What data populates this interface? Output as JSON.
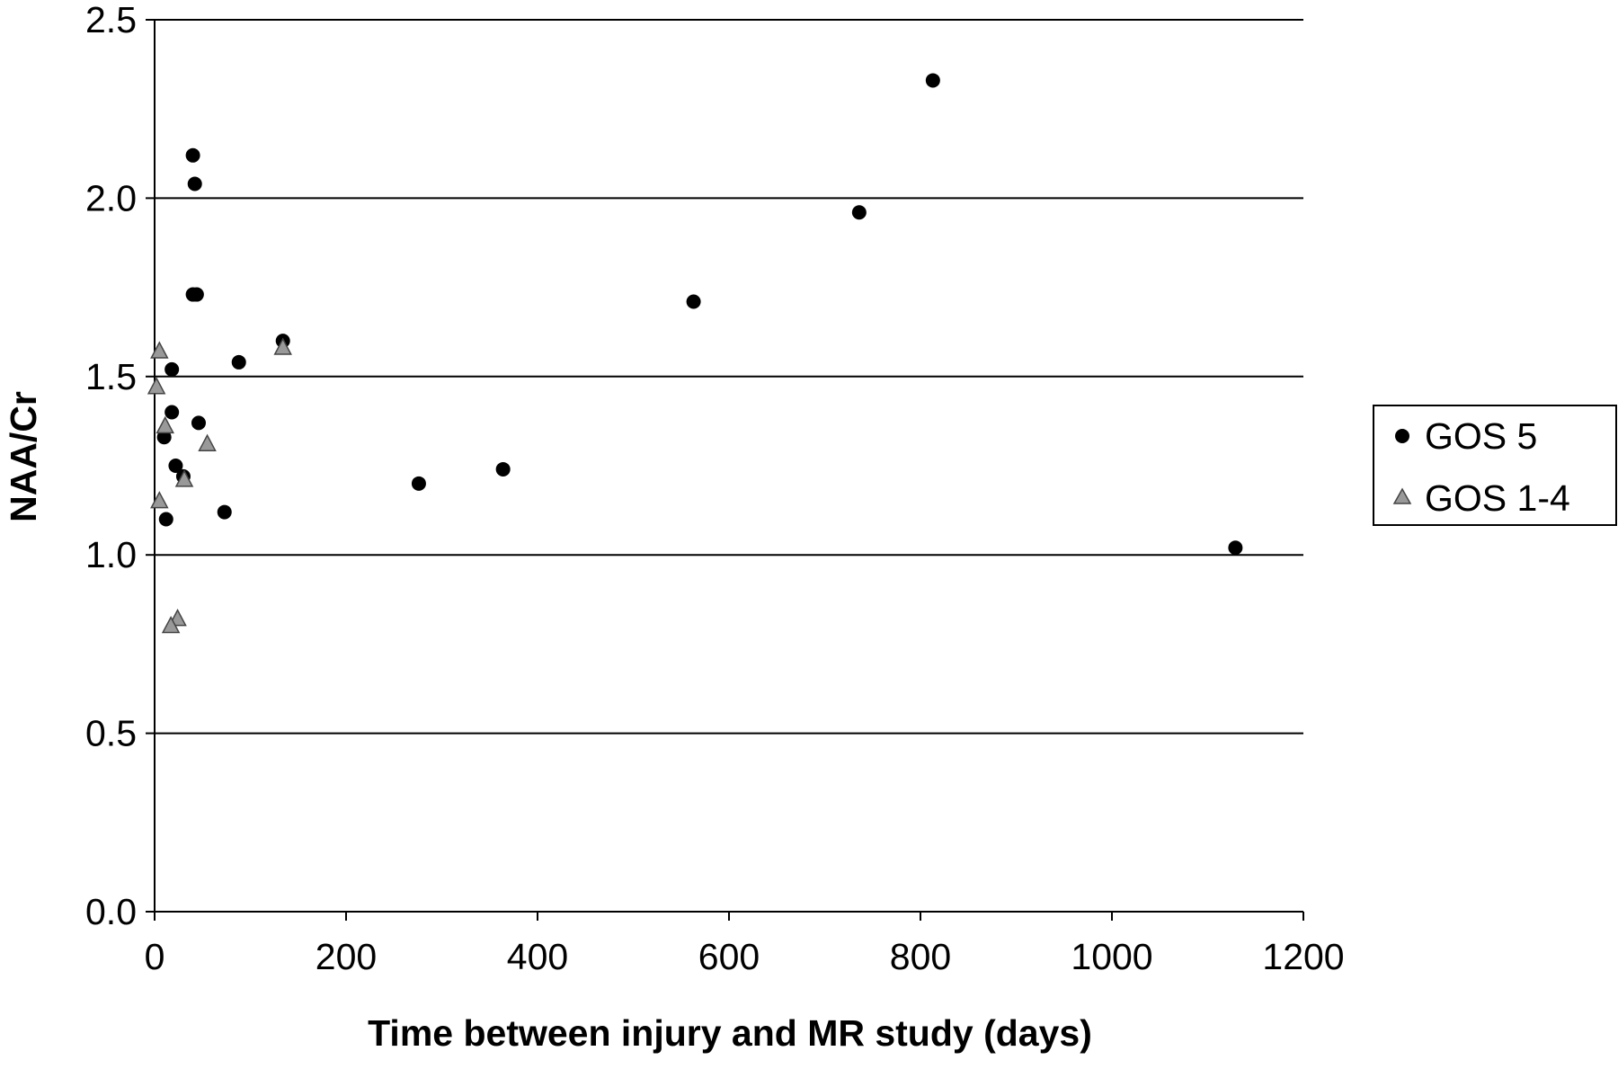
{
  "chart_data": {
    "type": "scatter",
    "xlabel": "Time between injury and MR study (days)",
    "ylabel": "NAA/Cr",
    "xlim": [
      0,
      1200
    ],
    "ylim": [
      0,
      2.5
    ],
    "xticks": [
      0,
      200,
      400,
      600,
      800,
      1000,
      1200
    ],
    "yticks": [
      0.0,
      0.5,
      1.0,
      1.5,
      2.0,
      2.5
    ],
    "ytick_labels": [
      "0.0",
      "0.5",
      "1.0",
      "1.5",
      "2.0",
      "2.5"
    ],
    "grid": "horizontal",
    "legend": "right",
    "series": [
      {
        "name": "GOS 5",
        "marker": "circle",
        "color": "#000000",
        "x": [
          40,
          42,
          40,
          44,
          18,
          134,
          88,
          18,
          10,
          46,
          22,
          30,
          12,
          73,
          276,
          364,
          563,
          736,
          813,
          1129
        ],
        "y": [
          2.12,
          2.04,
          1.73,
          1.73,
          1.52,
          1.6,
          1.54,
          1.4,
          1.33,
          1.37,
          1.25,
          1.22,
          1.1,
          1.12,
          1.2,
          1.24,
          1.71,
          1.96,
          2.33,
          1.02
        ]
      },
      {
        "name": "GOS 1-4",
        "marker": "triangle",
        "color": "#999999",
        "x": [
          5,
          2,
          11,
          55,
          31,
          5,
          24,
          17,
          134
        ],
        "y": [
          1.57,
          1.47,
          1.36,
          1.31,
          1.21,
          1.15,
          0.82,
          0.8,
          1.58
        ]
      }
    ]
  }
}
